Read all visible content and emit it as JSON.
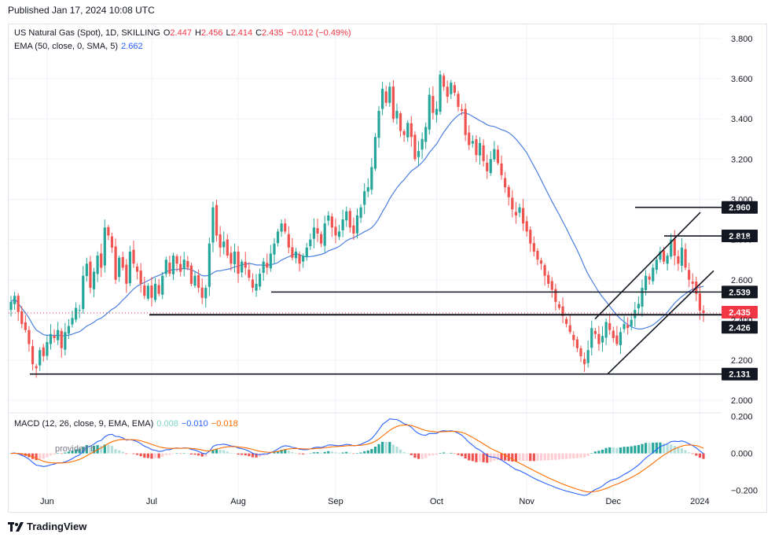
{
  "published": "Published  Jan 17, 2024 10:08 UTC",
  "legend": {
    "symbol": "US Natural Gas (Spot), 1D, SKILLING",
    "open_label": "O",
    "open": "2.447",
    "high_label": "H",
    "high": "2.456",
    "low_label": "L",
    "low": "2.414",
    "close_label": "C",
    "close": "2.435",
    "change": "−0.012 (−0.49%)",
    "ema_label": "EMA (50, close, 0, SMA, 5)",
    "ema_value": "2.662",
    "macd_label": "MACD (12, 26, close, 9, EMA, EMA)",
    "macd_hist": "0.008",
    "macd_line": "−0.010",
    "macd_signal": "−0.018",
    "watermark": "provided b"
  },
  "footer": "TradingView",
  "colors": {
    "up": "#26a69a",
    "down": "#ef5350",
    "ema": "#4a7fe0",
    "macd": "#2962ff",
    "signal": "#ff6d00"
  },
  "chart_data": {
    "type": "candlestick",
    "title": "US Natural Gas (Spot), 1D, SKILLING",
    "y_axis_ticks": [
      "3.800",
      "3.600",
      "3.400",
      "3.200",
      "3.000",
      "2.800",
      "2.600",
      "2.400",
      "2.200",
      "2.000"
    ],
    "y_axis_values": [
      3.8,
      3.6,
      3.4,
      3.2,
      3.0,
      2.8,
      2.6,
      2.4,
      2.2,
      2.0
    ],
    "ylim": [
      1.95,
      3.87
    ],
    "x_axis_ticks": [
      "Jun",
      "Jul",
      "Aug",
      "Sep",
      "Oct",
      "Nov",
      "Dec",
      "2024"
    ],
    "x_tick_index": [
      10,
      39,
      63,
      90,
      118,
      143,
      167,
      191
    ],
    "closes": [
      2.49,
      2.52,
      2.44,
      2.38,
      2.35,
      2.28,
      2.18,
      2.16,
      2.25,
      2.22,
      2.29,
      2.33,
      2.31,
      2.35,
      2.26,
      2.34,
      2.37,
      2.41,
      2.46,
      2.45,
      2.62,
      2.68,
      2.56,
      2.64,
      2.72,
      2.66,
      2.86,
      2.82,
      2.76,
      2.6,
      2.71,
      2.66,
      2.58,
      2.74,
      2.68,
      2.64,
      2.58,
      2.52,
      2.57,
      2.51,
      2.58,
      2.53,
      2.62,
      2.7,
      2.63,
      2.72,
      2.68,
      2.64,
      2.7,
      2.66,
      2.58,
      2.62,
      2.56,
      2.51,
      2.56,
      2.78,
      2.96,
      2.82,
      2.76,
      2.79,
      2.72,
      2.68,
      2.74,
      2.63,
      2.69,
      2.66,
      2.61,
      2.56,
      2.58,
      2.63,
      2.69,
      2.66,
      2.73,
      2.78,
      2.84,
      2.88,
      2.84,
      2.76,
      2.71,
      2.74,
      2.68,
      2.72,
      2.76,
      2.8,
      2.86,
      2.83,
      2.78,
      2.88,
      2.92,
      2.86,
      2.82,
      2.84,
      2.9,
      2.94,
      2.86,
      2.83,
      2.92,
      2.96,
      3.04,
      3.06,
      3.16,
      3.31,
      3.44,
      3.55,
      3.48,
      3.56,
      3.4,
      3.44,
      3.34,
      3.32,
      3.38,
      3.31,
      3.2,
      3.24,
      3.3,
      3.36,
      3.52,
      3.43,
      3.45,
      3.62,
      3.56,
      3.51,
      3.58,
      3.53,
      3.46,
      3.44,
      3.32,
      3.27,
      3.29,
      3.22,
      3.28,
      3.19,
      3.14,
      3.2,
      3.25,
      3.18,
      3.12,
      3.06,
      3.01,
      2.95,
      2.92,
      2.96,
      2.88,
      2.84,
      2.78,
      2.74,
      2.7,
      2.68,
      2.62,
      2.58,
      2.55,
      2.49,
      2.46,
      2.42,
      2.38,
      2.34,
      2.3,
      2.26,
      2.22,
      2.18,
      2.25,
      2.36,
      2.33,
      2.28,
      2.32,
      2.39,
      2.35,
      2.31,
      2.28,
      2.34,
      2.38,
      2.36,
      2.4,
      2.45,
      2.48,
      2.56,
      2.62,
      2.6,
      2.66,
      2.7,
      2.74,
      2.69,
      2.72,
      2.8,
      2.72,
      2.68,
      2.76,
      2.66,
      2.6,
      2.58,
      2.53,
      2.447,
      2.435
    ],
    "levels": [
      {
        "label": "2.960",
        "value": 2.96
      },
      {
        "label": "2.818",
        "value": 2.818
      },
      {
        "label": "2.539",
        "value": 2.539
      },
      {
        "label": "2.435",
        "value": 2.435,
        "current": true
      },
      {
        "label": "2.426",
        "value": 2.426
      },
      {
        "label": "2.131",
        "value": 2.131
      }
    ],
    "macd": {
      "y_axis_ticks": [
        "0.200",
        "0.000",
        "−0.200"
      ],
      "y_axis_values": [
        0.2,
        0.0,
        -0.2
      ],
      "ylim": [
        -0.27,
        0.22
      ]
    }
  }
}
